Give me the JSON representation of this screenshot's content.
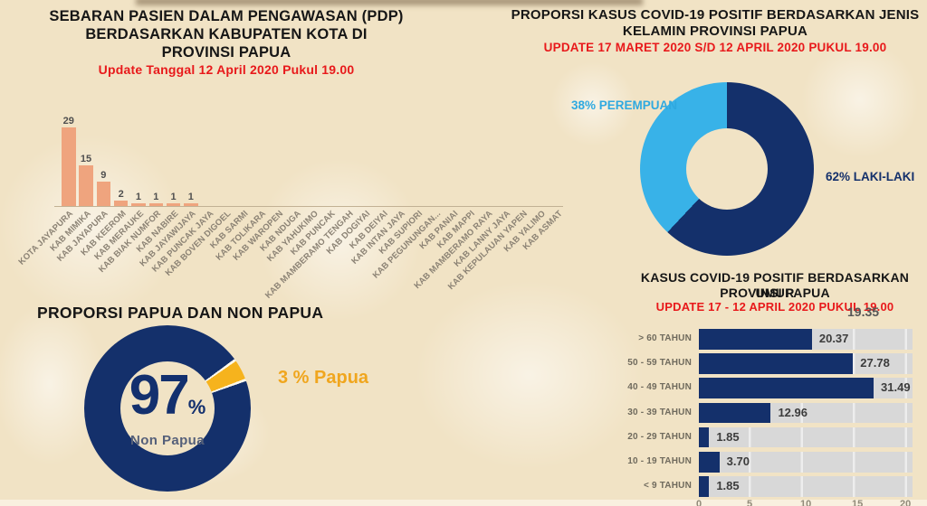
{
  "page": {
    "background_color": "#f1e3c5",
    "accent_red": "#e8191b",
    "navy": "#14306b",
    "light_blue": "#38b2e8",
    "salmon": "#efa47e",
    "yellow": "#f6b31d"
  },
  "chart_data": [
    {
      "id": "pdp_per_kabupaten",
      "type": "bar",
      "title": "SEBARAN PASIEN DALAM PENGAWASAN (PDP) BERDASARKAN KABUPATEN KOTA DI PROVINSI PAPUA",
      "title_lines": [
        "SEBARAN PASIEN DALAM PENGAWASAN (PDP)",
        "BERDASARKAN KABUPATEN KOTA DI",
        "PROVINSI PAPUA"
      ],
      "subtitle": "Update Tanggal 12 April 2020 Pukul 19.00",
      "categories": [
        "KOTA JAYAPURA",
        "KAB MIMIKA",
        "KAB JAYAPURA",
        "KAB KEEROM",
        "KAB MERAUKE",
        "KAB BIAK NUMFOR",
        "KAB NABIRE",
        "KAB JAYAWIJAYA",
        "KAB PUNCAK JAYA",
        "KAB BOVEN DIGOEL",
        "KAB SARMI",
        "KAB TOLIKARA",
        "KAB WAROPEN",
        "KAB NDUGA",
        "KAB YAHUKIMO",
        "KAB PUNCAK",
        "KAB MAMBERAMO TENGAH",
        "KAB DOGIYAI",
        "KAB DEIYAI",
        "KAB INTAN JAYA",
        "KAB SUPIORI",
        "KAB PEGUNUNGAN...",
        "KAB PANIAI",
        "KAB MAPPI",
        "KAB MAMBERAMO RAYA",
        "KAB LANNY JAYA",
        "KAB KEPULAUAN YAPEN",
        "KAB YALIMO",
        "KAB ASMAT"
      ],
      "values": [
        29,
        15,
        9,
        2,
        1,
        1,
        1,
        1,
        0,
        0,
        0,
        0,
        0,
        0,
        0,
        0,
        0,
        0,
        0,
        0,
        0,
        0,
        0,
        0,
        0,
        0,
        0,
        0,
        0
      ],
      "ylim": [
        0,
        29
      ],
      "grid": false,
      "legend": false,
      "bar_color": "#efa47e",
      "value_label_color": "#4f4f4f",
      "category_label_color": "#8b8274"
    },
    {
      "id": "gender_proportion",
      "type": "pie",
      "donut": true,
      "title": "PROPORSI KASUS COVID-19 POSITIF BERDASARKAN JENIS KELAMIN PROVINSI PAPUA",
      "title_lines": [
        "PROPORSI KASUS COVID-19 POSITIF BERDASARKAN JENIS",
        "KELAMIN PROVINSI PAPUA"
      ],
      "subtitle": "UPDATE 17 MARET 2020 S/D 12 APRIL 2020 PUKUL 19.00",
      "slices": [
        {
          "name": "Laki-Laki",
          "value": 62,
          "color": "#14306b",
          "callout": "62% LAKI-LAKI"
        },
        {
          "name": "Perempuan",
          "value": 38,
          "color": "#38b2e8",
          "callout": "38% PEREMPUAN"
        }
      ],
      "segments": [
        {
          "from": 0,
          "to": 223.2,
          "color": "#14306b"
        },
        {
          "from": 223.2,
          "to": 360,
          "color": "#38b2e8"
        }
      ],
      "legend_position": "sides"
    },
    {
      "id": "papua_non_papua",
      "type": "pie",
      "donut": true,
      "title": "PROPORSI PAPUA DAN NON PAPUA",
      "slices": [
        {
          "name": "Non Papua",
          "value": 97,
          "color": "#14306b"
        },
        {
          "name": "Papua",
          "value": 3,
          "color": "#f6b31d"
        }
      ],
      "segments": [
        {
          "from": 0,
          "to": 53.5,
          "color": "#14306b"
        },
        {
          "from": 53.5,
          "to": 55.3,
          "color": "#fdf8ec"
        },
        {
          "from": 55.3,
          "to": 69.0,
          "color": "#f6b31d"
        },
        {
          "from": 69.0,
          "to": 70.8,
          "color": "#fdf8ec"
        },
        {
          "from": 70.8,
          "to": 360,
          "color": "#14306b"
        }
      ],
      "center": {
        "value": "97",
        "unit": "%",
        "label": "Non Papua"
      },
      "callout": "3 % Papua"
    },
    {
      "id": "age_distribution",
      "type": "bar",
      "orientation": "horizontal",
      "title": "KASUS COVID-19 POSITIF BERDASARKAN UMUR PROVINSI PAPUA",
      "title_lines": [
        "KASUS COVID-19 POSITIF BERDASARKAN UMUR",
        "PROVINSI PAPUA"
      ],
      "subtitle": "UPDATE 17 - 12 APRIL 2020 PUKUL 19.00",
      "categories": [
        "> 60 TAHUN",
        "50 - 59 TAHUN",
        "40 - 49 TAHUN",
        "30 - 39 TAHUN",
        "20 - 29 TAHUN",
        "10 - 19 TAHUN",
        "< 9 TAHUN"
      ],
      "values": [
        20.37,
        27.78,
        31.49,
        12.96,
        1.85,
        3.7,
        1.85
      ],
      "value_labels": [
        "20.37",
        "27.78",
        "31.49",
        "12.96",
        "1.85",
        "3.70",
        "1.85"
      ],
      "xlim": [
        0,
        38.5
      ],
      "x_ticks": [
        "0",
        "5",
        "10",
        "15",
        "20"
      ],
      "stray_label": "19.35",
      "bar_color": "#14306b",
      "track_color": "#d8d8d8"
    }
  ]
}
